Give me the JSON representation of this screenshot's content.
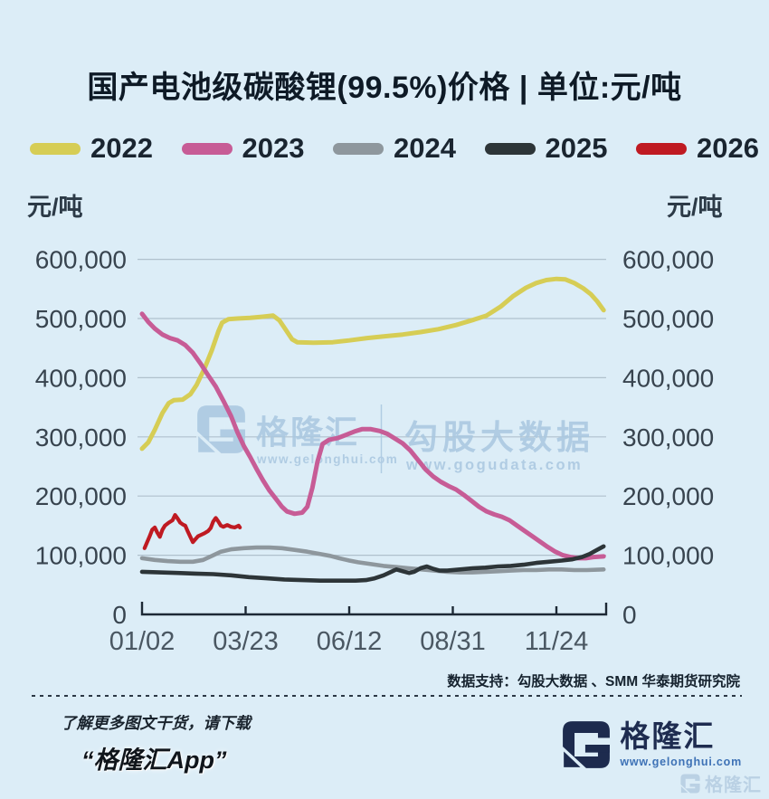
{
  "title": "国产电池级碳酸锂(99.5%)价格 | 单位:元/吨",
  "unit_left": "元/吨",
  "unit_right": "元/吨",
  "legend": [
    {
      "label": "2022",
      "color": "#d6cd55"
    },
    {
      "label": "2023",
      "color": "#c75c96"
    },
    {
      "label": "2024",
      "color": "#8e979d"
    },
    {
      "label": "2025",
      "color": "#2d3538"
    },
    {
      "label": "2026",
      "color": "#bf1a22"
    }
  ],
  "watermark": {
    "brand": "格隆汇",
    "brand_url": "www.gelonghui.com",
    "partner": "勾股大数据",
    "partner_url": "www.gogudata.com"
  },
  "footer": {
    "data_support": "数据支持：勾股大数据 、SMM 华泰期货研究院",
    "promo_line1": "了解更多图文干货，请下载",
    "promo_line2": "“格隆汇App”",
    "brand_name": "格隆汇",
    "brand_url": "www.gelonghui.com",
    "corner_watermark_text": "格隆汇"
  },
  "chart_data": {
    "type": "line",
    "title": "国产电池级碳酸锂(99.5%)价格",
    "ylabel": "元/吨",
    "grid": true,
    "legend_position": "top",
    "ylim": [
      0,
      650000
    ],
    "y_tick_values": [
      600000,
      500000,
      400000,
      300000,
      200000,
      100000,
      0
    ],
    "y_tick_labels": [
      "600,000",
      "500,000",
      "400,000",
      "300,000",
      "200,000",
      "100,000",
      "0"
    ],
    "x_tick_labels": [
      "01/02",
      "03/23",
      "06/12",
      "08/31",
      "11/24"
    ],
    "x_tick_days": [
      0,
      80,
      161,
      241,
      326
    ],
    "x_domain_days": [
      0,
      365
    ],
    "series": [
      {
        "name": "2022",
        "color": "#d6cd55",
        "width": 5,
        "z": 1,
        "points": [
          [
            0,
            280000
          ],
          [
            5,
            291000
          ],
          [
            10,
            312000
          ],
          [
            16,
            340000
          ],
          [
            21,
            357000
          ],
          [
            25,
            362000
          ],
          [
            32,
            363000
          ],
          [
            38,
            372000
          ],
          [
            43,
            388000
          ],
          [
            49,
            415000
          ],
          [
            55,
            447000
          ],
          [
            60,
            478000
          ],
          [
            63,
            493000
          ],
          [
            68,
            499000
          ],
          [
            75,
            500000
          ],
          [
            85,
            501000
          ],
          [
            95,
            503000
          ],
          [
            103,
            505000
          ],
          [
            108,
            497000
          ],
          [
            113,
            481000
          ],
          [
            118,
            465000
          ],
          [
            122,
            460000
          ],
          [
            135,
            459000
          ],
          [
            150,
            460000
          ],
          [
            163,
            463000
          ],
          [
            177,
            467000
          ],
          [
            191,
            470000
          ],
          [
            205,
            473000
          ],
          [
            219,
            477000
          ],
          [
            233,
            482000
          ],
          [
            247,
            489000
          ],
          [
            261,
            498000
          ],
          [
            271,
            505000
          ],
          [
            282,
            520000
          ],
          [
            292,
            538000
          ],
          [
            302,
            552000
          ],
          [
            310,
            560000
          ],
          [
            318,
            565000
          ],
          [
            326,
            567000
          ],
          [
            333,
            566000
          ],
          [
            340,
            560000
          ],
          [
            347,
            551000
          ],
          [
            353,
            541000
          ],
          [
            358,
            529000
          ],
          [
            363,
            514000
          ]
        ]
      },
      {
        "name": "2023",
        "color": "#c75c96",
        "width": 5,
        "z": 3,
        "points": [
          [
            0,
            508000
          ],
          [
            5,
            494000
          ],
          [
            10,
            483000
          ],
          [
            16,
            473000
          ],
          [
            22,
            467000
          ],
          [
            28,
            463000
          ],
          [
            34,
            455000
          ],
          [
            40,
            442000
          ],
          [
            46,
            424000
          ],
          [
            52,
            404000
          ],
          [
            58,
            385000
          ],
          [
            64,
            361000
          ],
          [
            70,
            335000
          ],
          [
            75,
            308000
          ],
          [
            80,
            285000
          ],
          [
            85,
            266000
          ],
          [
            90,
            246000
          ],
          [
            95,
            227000
          ],
          [
            100,
            210000
          ],
          [
            105,
            196000
          ],
          [
            110,
            182000
          ],
          [
            114,
            174000
          ],
          [
            120,
            170000
          ],
          [
            126,
            172000
          ],
          [
            130,
            182000
          ],
          [
            134,
            214000
          ],
          [
            138,
            258000
          ],
          [
            142,
            288000
          ],
          [
            147,
            295000
          ],
          [
            154,
            298000
          ],
          [
            160,
            303000
          ],
          [
            167,
            309000
          ],
          [
            173,
            313000
          ],
          [
            180,
            313000
          ],
          [
            187,
            310000
          ],
          [
            193,
            305000
          ],
          [
            199,
            297000
          ],
          [
            205,
            289000
          ],
          [
            211,
            277000
          ],
          [
            217,
            261000
          ],
          [
            223,
            245000
          ],
          [
            229,
            233000
          ],
          [
            235,
            224000
          ],
          [
            241,
            217000
          ],
          [
            247,
            211000
          ],
          [
            253,
            202000
          ],
          [
            259,
            192000
          ],
          [
            265,
            182000
          ],
          [
            271,
            174000
          ],
          [
            277,
            169000
          ],
          [
            283,
            165000
          ],
          [
            289,
            159000
          ],
          [
            295,
            150000
          ],
          [
            301,
            141000
          ],
          [
            307,
            132000
          ],
          [
            313,
            123000
          ],
          [
            319,
            114000
          ],
          [
            325,
            106000
          ],
          [
            331,
            100000
          ],
          [
            337,
            97000
          ],
          [
            343,
            95000
          ],
          [
            349,
            95000
          ],
          [
            355,
            97000
          ],
          [
            363,
            98000
          ]
        ]
      },
      {
        "name": "2024",
        "color": "#8e979d",
        "width": 4.6,
        "z": 2,
        "points": [
          [
            0,
            95000
          ],
          [
            10,
            92000
          ],
          [
            20,
            90000
          ],
          [
            30,
            89000
          ],
          [
            40,
            89000
          ],
          [
            48,
            92000
          ],
          [
            55,
            99000
          ],
          [
            62,
            106000
          ],
          [
            70,
            110000
          ],
          [
            80,
            112000
          ],
          [
            90,
            113000
          ],
          [
            100,
            113000
          ],
          [
            110,
            112000
          ],
          [
            120,
            109000
          ],
          [
            130,
            106000
          ],
          [
            140,
            102000
          ],
          [
            148,
            99000
          ],
          [
            155,
            95000
          ],
          [
            163,
            91000
          ],
          [
            170,
            88000
          ],
          [
            180,
            85000
          ],
          [
            190,
            82000
          ],
          [
            200,
            80000
          ],
          [
            210,
            78000
          ],
          [
            220,
            76000
          ],
          [
            230,
            74000
          ],
          [
            240,
            72000
          ],
          [
            250,
            71000
          ],
          [
            260,
            71000
          ],
          [
            270,
            72000
          ],
          [
            280,
            73000
          ],
          [
            290,
            74000
          ],
          [
            300,
            75000
          ],
          [
            310,
            75000
          ],
          [
            320,
            76000
          ],
          [
            330,
            76000
          ],
          [
            340,
            75000
          ],
          [
            350,
            75000
          ],
          [
            363,
            76000
          ]
        ]
      },
      {
        "name": "2025",
        "color": "#2d3538",
        "width": 4.6,
        "z": 4,
        "points": [
          [
            0,
            72000
          ],
          [
            14,
            71000
          ],
          [
            28,
            70000
          ],
          [
            42,
            69000
          ],
          [
            56,
            68000
          ],
          [
            70,
            66000
          ],
          [
            84,
            63000
          ],
          [
            98,
            61000
          ],
          [
            112,
            59000
          ],
          [
            126,
            58000
          ],
          [
            140,
            57000
          ],
          [
            154,
            57000
          ],
          [
            168,
            57000
          ],
          [
            176,
            58000
          ],
          [
            183,
            61000
          ],
          [
            190,
            66000
          ],
          [
            196,
            72000
          ],
          [
            200,
            76000
          ],
          [
            205,
            73000
          ],
          [
            210,
            70000
          ],
          [
            214,
            72000
          ],
          [
            219,
            78000
          ],
          [
            224,
            81000
          ],
          [
            229,
            77000
          ],
          [
            234,
            74000
          ],
          [
            240,
            74000
          ],
          [
            250,
            76000
          ],
          [
            260,
            78000
          ],
          [
            270,
            79000
          ],
          [
            280,
            81000
          ],
          [
            290,
            82000
          ],
          [
            300,
            84000
          ],
          [
            310,
            87000
          ],
          [
            320,
            89000
          ],
          [
            330,
            91000
          ],
          [
            338,
            93000
          ],
          [
            346,
            97000
          ],
          [
            352,
            102000
          ],
          [
            357,
            108000
          ],
          [
            363,
            115000
          ]
        ]
      },
      {
        "name": "2026",
        "color": "#bf1a22",
        "width": 4.2,
        "z": 5,
        "points": [
          [
            2,
            112000
          ],
          [
            4,
            122000
          ],
          [
            6,
            132000
          ],
          [
            8,
            143000
          ],
          [
            10,
            147000
          ],
          [
            12,
            138000
          ],
          [
            14,
            131000
          ],
          [
            16,
            143000
          ],
          [
            18,
            150000
          ],
          [
            21,
            155000
          ],
          [
            24,
            159000
          ],
          [
            26,
            168000
          ],
          [
            28,
            162000
          ],
          [
            30,
            155000
          ],
          [
            32,
            152000
          ],
          [
            34,
            150000
          ],
          [
            36,
            140000
          ],
          [
            38,
            131000
          ],
          [
            40,
            122000
          ],
          [
            42,
            127000
          ],
          [
            44,
            132000
          ],
          [
            46,
            134000
          ],
          [
            49,
            137000
          ],
          [
            52,
            141000
          ],
          [
            54,
            146000
          ],
          [
            56,
            157000
          ],
          [
            58,
            163000
          ],
          [
            60,
            157000
          ],
          [
            62,
            150000
          ],
          [
            64,
            148000
          ],
          [
            67,
            151000
          ],
          [
            70,
            148000
          ],
          [
            73,
            147000
          ],
          [
            76,
            150000
          ],
          [
            77,
            147000
          ]
        ]
      }
    ]
  }
}
